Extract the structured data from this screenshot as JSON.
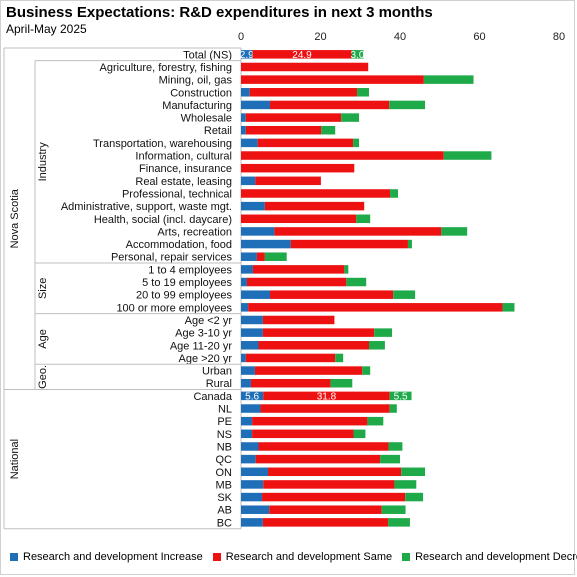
{
  "header": {
    "title": "Business Expectations: R&D expenditures in next 3 months",
    "subtitle": "April-May 2025"
  },
  "chart_data": {
    "type": "bar",
    "orientation": "horizontal",
    "stacked": true,
    "title": "Business Expectations: R&D expenditures in next 3 months",
    "subtitle": "April-May 2025",
    "xlim": [
      0,
      80
    ],
    "xticks": [
      0,
      20,
      40,
      60,
      80
    ],
    "grid": false,
    "legend_position": "bottom",
    "colors": {
      "increase": "#1f6fb8",
      "same": "#ee1111",
      "decrease": "#1faa4a"
    },
    "series": [
      {
        "name": "Research and development Increase",
        "key": "increase"
      },
      {
        "name": "Research and development Same",
        "key": "same"
      },
      {
        "name": "Research and development Decrease",
        "key": "decrease"
      }
    ],
    "categories": [
      "Total (NS)",
      "Agriculture, forestry, fishing",
      "Mining, oil, gas",
      "Construction",
      "Manufacturing",
      "Wholesale",
      "Retail",
      "Transportation, warehousing",
      "Information, cultural",
      "Finance, insurance",
      "Real estate, leasing",
      "Professional, technical",
      "Administrative, support, waste mgt.",
      "Health, social (incl. daycare)",
      "Arts, recreation",
      "Accommodation, food",
      "Personal, repair services",
      "1 to 4 employees",
      "5 to 19 employees",
      "20 to 99 employees",
      "100 or more employees",
      "Age <2 yr",
      "Age 3-10 yr",
      "Age 11-20 yr",
      "Age >20 yr",
      "Urban",
      "Rural",
      "Canada",
      "NL",
      "PE",
      "NS",
      "NB",
      "QC",
      "ON",
      "MB",
      "SK",
      "AB",
      "BC"
    ],
    "values": {
      "increase": [
        2.9,
        0.0,
        0.0,
        2.2,
        7.3,
        1.2,
        1.2,
        4.2,
        0.0,
        0.0,
        3.6,
        0.0,
        6.0,
        0.0,
        8.4,
        12.5,
        4.0,
        3.0,
        1.5,
        7.3,
        1.8,
        5.5,
        5.5,
        4.4,
        1.2,
        3.5,
        2.5,
        5.6,
        4.9,
        2.8,
        2.8,
        4.4,
        3.7,
        6.8,
        5.6,
        5.3,
        7.1,
        5.5
      ],
      "same": [
        24.9,
        32.0,
        46.0,
        27.0,
        30.0,
        24.0,
        19.0,
        24.0,
        51.0,
        28.5,
        16.5,
        37.5,
        25.0,
        29.0,
        42.0,
        29.5,
        2.0,
        23.0,
        25.0,
        31.0,
        64.0,
        18.0,
        28.0,
        27.8,
        22.5,
        27.0,
        20.0,
        31.8,
        32.5,
        29.0,
        25.5,
        32.7,
        31.3,
        33.5,
        33.0,
        36.0,
        28.3,
        31.5
      ],
      "decrease": [
        3.0,
        0.0,
        12.5,
        3.0,
        9.0,
        4.5,
        3.5,
        1.5,
        12.0,
        0.0,
        0.0,
        2.0,
        0.0,
        3.5,
        6.5,
        1.0,
        5.5,
        1.0,
        5.0,
        5.5,
        3.0,
        0.0,
        4.5,
        4.0,
        2.0,
        2.0,
        5.5,
        5.5,
        1.8,
        4.0,
        3.0,
        3.5,
        5.0,
        6.0,
        5.5,
        4.5,
        6.0,
        5.5
      ]
    },
    "data_labels": {
      "0": [
        "2.9",
        "24.9",
        "3.0"
      ],
      "27": [
        "5.6",
        "31.8",
        "5.5"
      ]
    },
    "groups": [
      {
        "label": "Industry",
        "start": 1,
        "end": 16,
        "parent": "Nova Scotia"
      },
      {
        "label": "Size",
        "start": 17,
        "end": 20,
        "parent": "Nova Scotia"
      },
      {
        "label": "Age",
        "start": 21,
        "end": 24,
        "parent": "Nova Scotia"
      },
      {
        "label": "Geo.",
        "start": 25,
        "end": 26,
        "parent": "Nova Scotia"
      }
    ],
    "outer_groups": [
      {
        "label": "Nova Scotia",
        "start": 0,
        "end": 26
      },
      {
        "label": "National",
        "start": 27,
        "end": 37
      }
    ]
  }
}
